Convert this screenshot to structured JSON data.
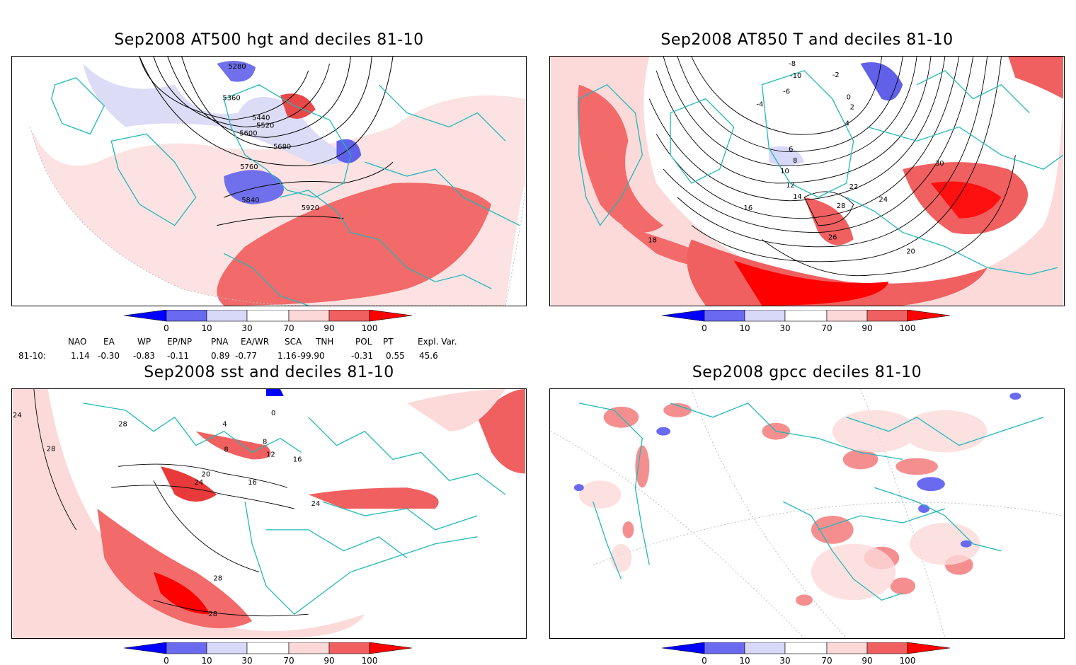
{
  "panels": [
    {
      "title": "Sep2008 AT500 hgt and deciles 81-10",
      "contour_labels": [
        "5280",
        "5360",
        "5440",
        "5520",
        "5600",
        "5680",
        "5760",
        "5840",
        "5920"
      ]
    },
    {
      "title": "Sep2008 AT850 T and deciles 81-10",
      "contour_labels": [
        "-8",
        "-10",
        "-6",
        "-2",
        "0",
        "-4",
        "2",
        "4",
        "6",
        "8",
        "10",
        "12",
        "14",
        "16",
        "18",
        "20",
        "22",
        "24",
        "26",
        "28",
        "30"
      ]
    },
    {
      "title": "Sep2008 sst and deciles 81-10",
      "contour_labels": [
        "24",
        "28",
        "28",
        "0",
        "4",
        "8",
        "8",
        "12",
        "16",
        "16",
        "20",
        "24",
        "24",
        "28",
        "28"
      ]
    },
    {
      "title": "Sep2008 gpcc deciles 81-10",
      "contour_labels": []
    }
  ],
  "colorbar": {
    "tick_labels": [
      "0",
      "10",
      "30",
      "70",
      "90",
      "100"
    ],
    "colors": [
      "#0000ff",
      "#6a6af0",
      "#d8d8f8",
      "#ffffff",
      "#fcd8d8",
      "#f06060",
      "#ff0000"
    ]
  },
  "indices": {
    "headers": [
      "NAO",
      "EA",
      "WP",
      "EP/NP",
      "PNA",
      "EA/WR",
      "SCA",
      "TNH",
      "POL",
      "PT",
      "Expl. Var."
    ],
    "row_label": "81-10:",
    "values": [
      "1.14",
      "-0.30",
      "-0.83",
      "-0.11",
      "0.89",
      "-0.77",
      "1.16",
      "-99.90",
      "-0.31",
      "0.55",
      "45.6"
    ]
  }
}
